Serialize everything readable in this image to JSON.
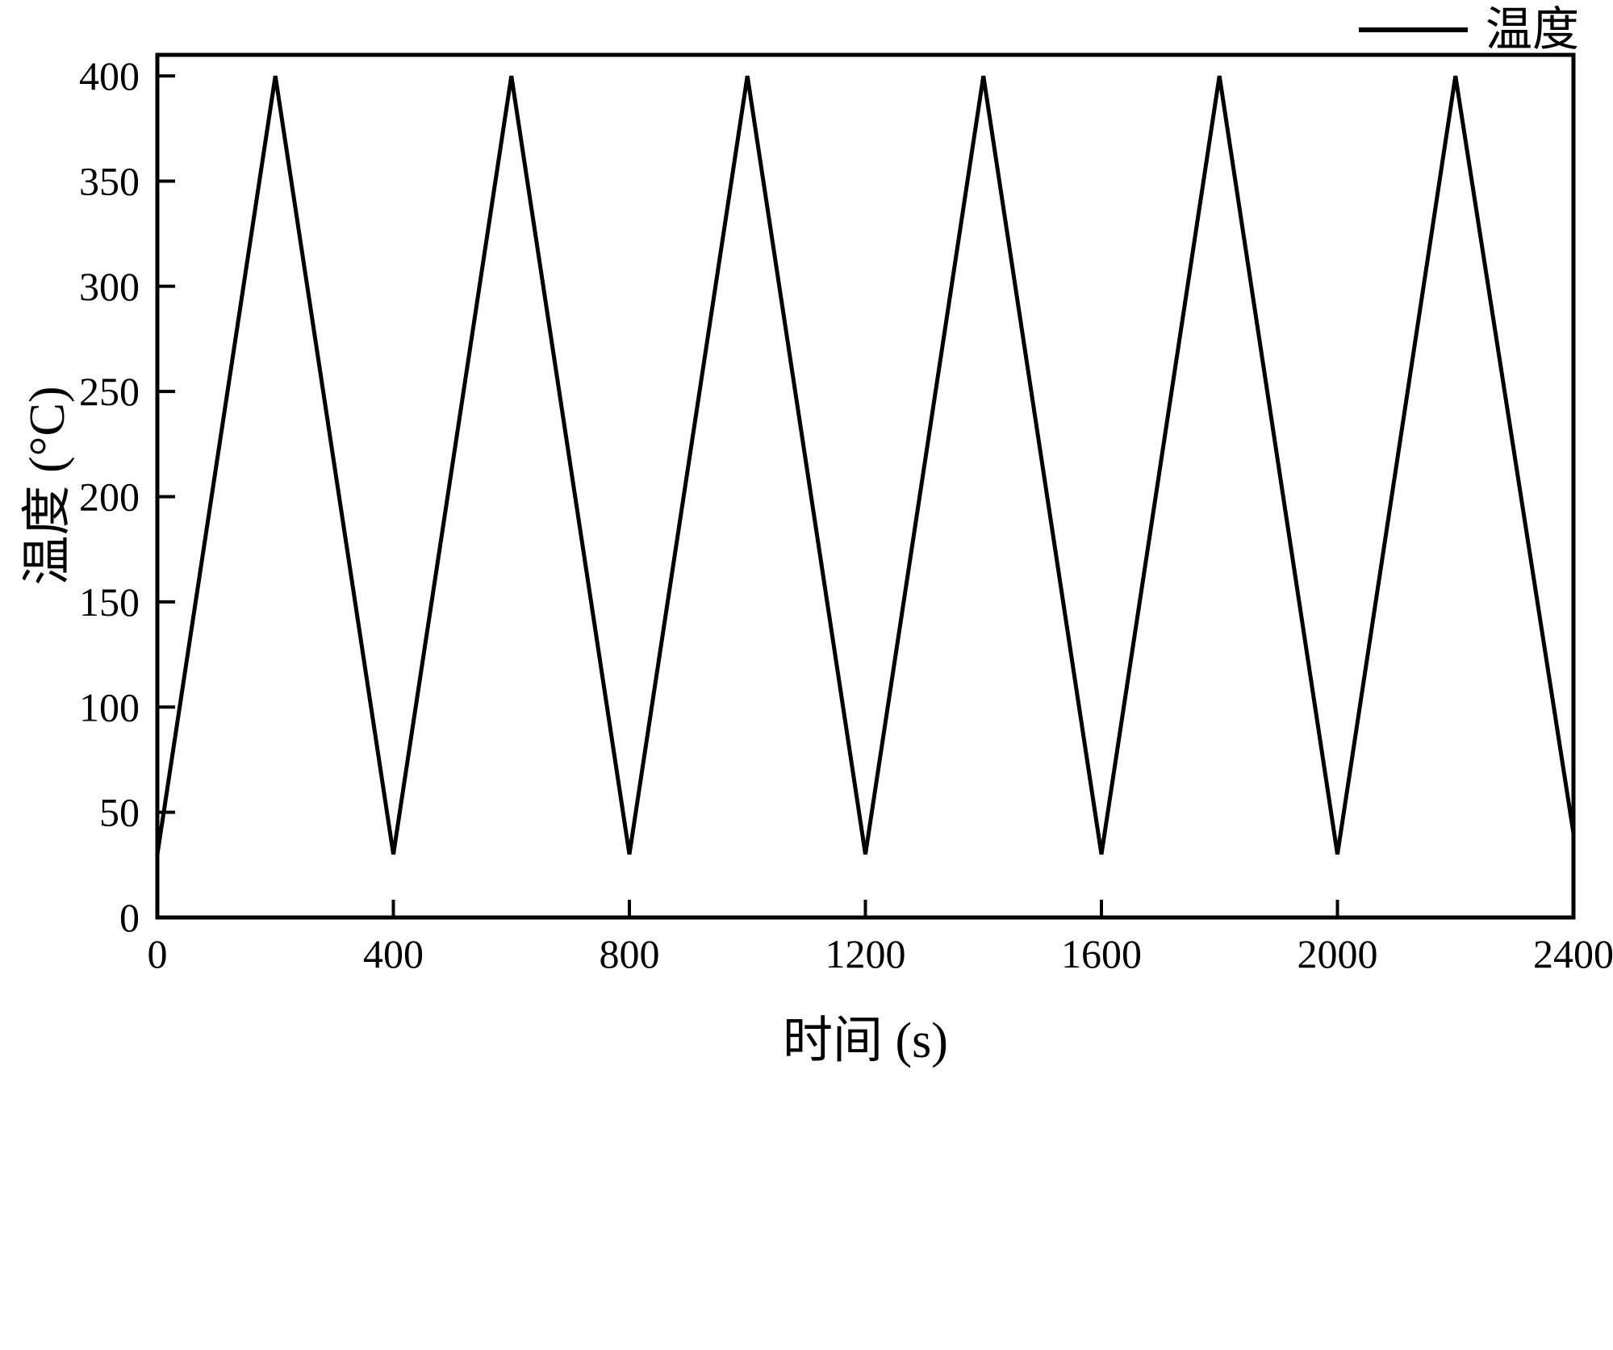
{
  "page": {
    "background": "#ffffff"
  },
  "legend": {
    "label": "温度",
    "line_color": "#000000"
  },
  "chart_data": {
    "type": "line",
    "title": "",
    "xlabel": "时间 (s)",
    "ylabel": "温度 (°C)",
    "xlim": [
      0,
      2400
    ],
    "ylim": [
      0,
      410
    ],
    "xticks": [
      0,
      400,
      800,
      1200,
      1600,
      2000,
      2400
    ],
    "yticks": [
      0,
      50,
      100,
      150,
      200,
      250,
      300,
      350,
      400
    ],
    "grid": false,
    "legend_position": "top-right-outside",
    "legend_entries": [
      "温度"
    ],
    "line_color": "#000000",
    "line_width": 5,
    "series": [
      {
        "name": "温度",
        "x": [
          0,
          200,
          400,
          600,
          800,
          1000,
          1200,
          1400,
          1600,
          1800,
          2000,
          2200,
          2400
        ],
        "y": [
          30,
          400,
          30,
          400,
          30,
          400,
          30,
          400,
          30,
          400,
          30,
          400,
          40
        ]
      }
    ]
  }
}
